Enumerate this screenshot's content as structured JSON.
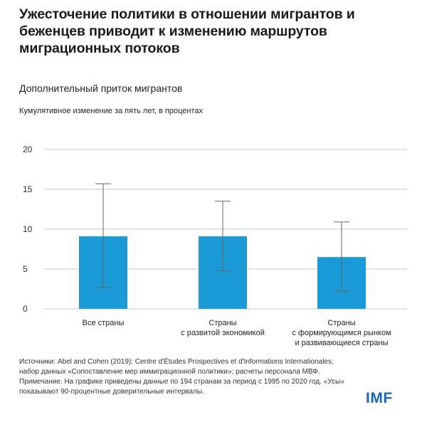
{
  "header": {
    "title": "Ужесточение политики в отношении мигрантов и беженцев приводит к изменению маршрутов миграционных потоков",
    "subtitle": "Дополнительный приток мигрантов",
    "unit": "Кумулятивное изменение за пять лет, в процентах"
  },
  "footer": {
    "source": "Источники: Abel and Cohen (2019); Centre d'Études Prospectives et d'Informations Internationales; набор данных «Сопоставление мер иммиграционной политики»; расчеты персонала МВФ. Примечание. На графике приведены данные по 194 странам за период с 1995 по 2020 год. «Усы» показывают 90-процентные доверительные интервалы.",
    "logo": "IMF"
  },
  "colors": {
    "bar": "#1a9ad6",
    "whisker": "#666666",
    "grid": "#c8c8c8"
  },
  "chart_data": {
    "type": "bar",
    "categories": [
      [
        "Все страны"
      ],
      [
        "Страны",
        "с развитой экономикой"
      ],
      [
        "Страны",
        "с формирующимся рынком",
        "и развивающиеся страны"
      ]
    ],
    "values": [
      9.1,
      9.1,
      6.5
    ],
    "error_low": [
      2.7,
      4.8,
      2.2
    ],
    "error_high": [
      15.7,
      13.5,
      10.9
    ],
    "yticks": [
      0,
      5,
      10,
      15,
      20
    ],
    "ylim": [
      0,
      20
    ],
    "grid": true
  }
}
